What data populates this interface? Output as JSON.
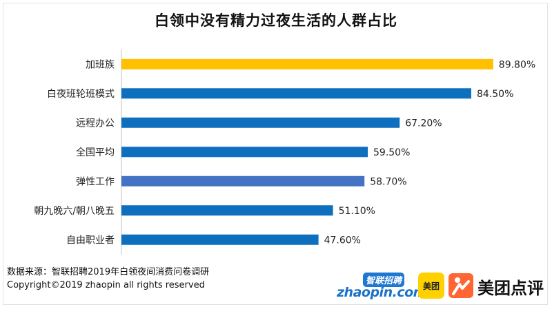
{
  "title": "白领中没有精力过夜生活的人群占比",
  "chart_data": {
    "type": "bar",
    "orientation": "horizontal",
    "categories": [
      "加班族",
      "白夜班轮班模式",
      "远程办公",
      "全国平均",
      "弹性工作",
      "朝九晚六/朝八晚五",
      "自由职业者"
    ],
    "values": [
      89.8,
      84.5,
      67.2,
      59.5,
      58.7,
      51.1,
      47.6
    ],
    "value_labels": [
      "89.80%",
      "84.50%",
      "67.20%",
      "59.50%",
      "58.70%",
      "51.10%",
      "47.60%"
    ],
    "bar_colors": [
      "#ffc000",
      "#0f6fbf",
      "#0f6fbf",
      "#0f6fbf",
      "#4472c4",
      "#0f6fbf",
      "#0f6fbf"
    ],
    "xlim": [
      0,
      100
    ],
    "grid": false,
    "legend": "none",
    "title": "白领中没有精力过夜生活的人群占比"
  },
  "source": {
    "line1": "数据来源：智联招聘2019年白领夜间消费问卷调研",
    "line2": "Copyright©2019 zhaopin all rights reserved"
  },
  "logos": {
    "zhaopin_cn": "智联招聘",
    "zhaopin_en": "zhaopin.com",
    "meituan": "美团",
    "dianping": "美团点评"
  }
}
